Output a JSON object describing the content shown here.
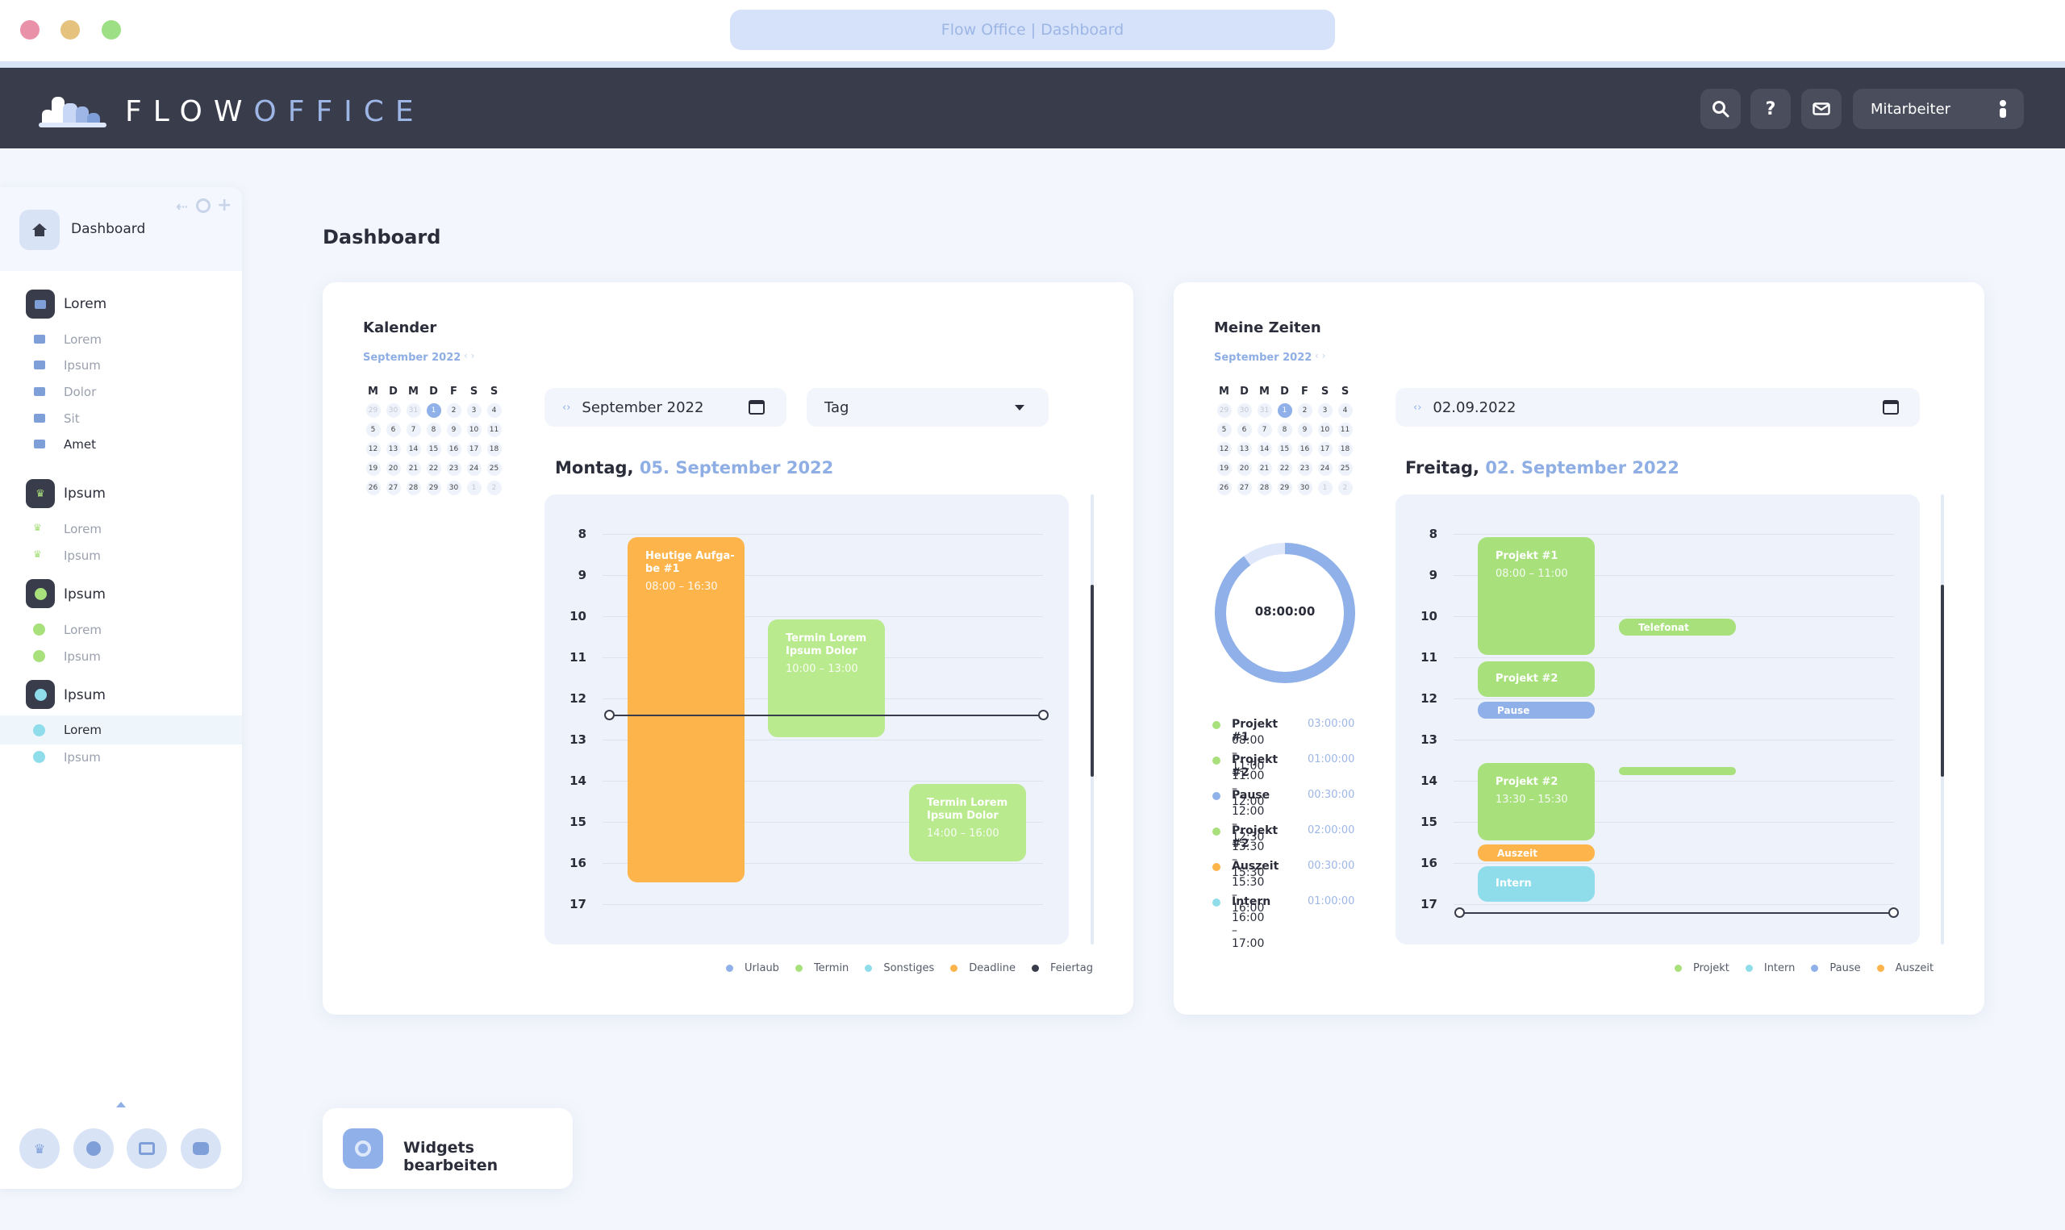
{
  "browser": {
    "title": "Flow Office | Dashboard"
  },
  "header": {
    "logo_flow": "FLOW",
    "logo_office": "OFFICE",
    "user_label": "Mitarbeiter"
  },
  "sidebar": {
    "dashboard_label": "Dashboard",
    "groups": [
      {
        "label": "Lorem",
        "items": [
          "Lorem",
          "Ipsum",
          "Dolor",
          "Sit",
          "Amet"
        ]
      },
      {
        "label": "Ipsum",
        "items": [
          "Lorem",
          "Ipsum"
        ]
      },
      {
        "label": "Ipsum",
        "items": [
          "Lorem",
          "Ipsum"
        ]
      },
      {
        "label": "Ipsum",
        "items": [
          "Lorem",
          "Ipsum"
        ]
      }
    ]
  },
  "page": {
    "title": "Dashboard",
    "widgets_button": "Widgets bearbeiten"
  },
  "calendar_card": {
    "title": "Kalender",
    "month_label": "September 2022",
    "weekdays": [
      "M",
      "D",
      "M",
      "D",
      "F",
      "S",
      "S"
    ],
    "days": [
      "29",
      "30",
      "31",
      "1",
      "2",
      "3",
      "4",
      "5",
      "6",
      "7",
      "8",
      "9",
      "10",
      "11",
      "12",
      "13",
      "14",
      "15",
      "16",
      "17",
      "18",
      "19",
      "20",
      "21",
      "22",
      "23",
      "24",
      "25",
      "26",
      "27",
      "28",
      "29",
      "30",
      "1",
      "2"
    ],
    "month_field": "September 2022",
    "view_select": "Tag",
    "day_prefix": "Montag,",
    "day_date": "05. September 2022",
    "hours": [
      "8",
      "9",
      "10",
      "11",
      "12",
      "13",
      "14",
      "15",
      "16",
      "17"
    ],
    "events": [
      {
        "title": "Heutige Aufga-be #1",
        "time": "08:00 – 16:30"
      },
      {
        "title": "Termin Lorem Ipsum Dolor",
        "time": "10:00 – 13:00"
      },
      {
        "title": "Termin Lorem Ipsum Dolor",
        "time": "14:00 – 16:00"
      }
    ],
    "legend": [
      {
        "label": "Urlaub",
        "color": "#8fb0e8"
      },
      {
        "label": "Termin",
        "color": "#a8e07c"
      },
      {
        "label": "Sonstiges",
        "color": "#8fdceb"
      },
      {
        "label": "Deadline",
        "color": "#fdb44b"
      },
      {
        "label": "Feiertag",
        "color": "#393c4a"
      }
    ]
  },
  "times_card": {
    "title": "Meine Zeiten",
    "month_label": "September 2022",
    "date_field": "02.09.2022",
    "donut_value": "08:00:00",
    "donut_fraction": 0.9,
    "day_prefix": "Freitag,",
    "day_date": "02. September 2022",
    "entries": [
      {
        "name": "Projekt #1",
        "range": "08:00 – 11:00",
        "duration": "03:00:00",
        "color": "#a8e07c"
      },
      {
        "name": "Projekt #2",
        "range": "11:00 – 12:00",
        "duration": "01:00:00",
        "color": "#a8e07c"
      },
      {
        "name": "Pause",
        "range": "12:00 – 12:30",
        "duration": "00:30:00",
        "color": "#8fb0e8"
      },
      {
        "name": "Projekt #2",
        "range": "13:30 – 15:30",
        "duration": "02:00:00",
        "color": "#a8e07c"
      },
      {
        "name": "Auszeit",
        "range": "15:30 – 16:00",
        "duration": "00:30:00",
        "color": "#fdb44b"
      },
      {
        "name": "Intern",
        "range": "16:00 – 17:00",
        "duration": "01:00:00",
        "color": "#8fdceb"
      }
    ],
    "events": [
      {
        "title": "Projekt #1",
        "time": "08:00 – 11:00"
      },
      {
        "title": "Telefonat"
      },
      {
        "title": "Projekt #2"
      },
      {
        "title": "Pause"
      },
      {
        "title": "Projekt #2",
        "time": "13:30 – 15:30"
      },
      {
        "title": "Auszeit"
      },
      {
        "title": "Intern"
      }
    ],
    "legend": [
      {
        "label": "Projekt",
        "color": "#a8e07c"
      },
      {
        "label": "Intern",
        "color": "#8fdceb"
      },
      {
        "label": "Pause",
        "color": "#8fb0e8"
      },
      {
        "label": "Auszeit",
        "color": "#fdb44b"
      }
    ]
  }
}
